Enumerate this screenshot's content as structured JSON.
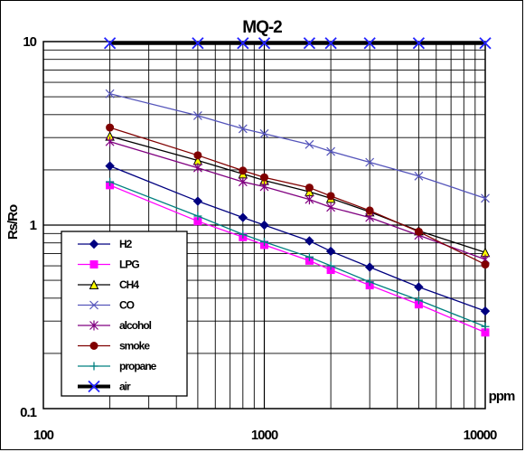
{
  "chart_data": {
    "type": "line",
    "title": "MQ-2",
    "xlabel": "ppm",
    "ylabel": "Rs/Ro",
    "x_scale": "log",
    "y_scale": "log",
    "xlim": [
      100,
      10000
    ],
    "ylim": [
      0.1,
      10
    ],
    "x_tick_labels": [
      "100",
      "1000",
      "10000"
    ],
    "y_tick_labels": [
      "0.1",
      "1",
      "10"
    ],
    "grid": true,
    "legend_position": "bottom-left",
    "series": [
      {
        "name": "H2",
        "color": "#000080",
        "marker": "diamond",
        "x": [
          200,
          500,
          800,
          1000,
          1600,
          2000,
          3000,
          5000,
          10000
        ],
        "y": [
          2.1,
          1.35,
          1.1,
          1.0,
          0.82,
          0.72,
          0.59,
          0.46,
          0.34
        ]
      },
      {
        "name": "LPG",
        "color": "#FF00FF",
        "marker": "square",
        "x": [
          200,
          500,
          800,
          1000,
          1600,
          2000,
          3000,
          5000,
          10000
        ],
        "y": [
          1.65,
          1.05,
          0.86,
          0.78,
          0.64,
          0.57,
          0.47,
          0.37,
          0.26
        ]
      },
      {
        "name": "CH4",
        "color": "#000000",
        "marker": "triangle",
        "x": [
          200,
          500,
          800,
          1000,
          1600,
          2000,
          3000,
          5000,
          10000
        ],
        "y": [
          3.05,
          2.25,
          1.9,
          1.75,
          1.52,
          1.4,
          1.18,
          0.93,
          0.71
        ]
      },
      {
        "name": "CO",
        "color": "#5555BB",
        "marker": "x",
        "x": [
          200,
          500,
          800,
          1000,
          1600,
          2000,
          3000,
          5000,
          10000
        ],
        "y": [
          5.2,
          3.95,
          3.35,
          3.15,
          2.75,
          2.52,
          2.2,
          1.85,
          1.4
        ]
      },
      {
        "name": "alcohol",
        "color": "#800080",
        "marker": "star",
        "x": [
          200,
          500,
          800,
          1000,
          1600,
          2000,
          3000,
          5000,
          10000
        ],
        "y": [
          2.85,
          2.05,
          1.72,
          1.62,
          1.38,
          1.25,
          1.1,
          0.88,
          0.65
        ]
      },
      {
        "name": "smoke",
        "color": "#800000",
        "marker": "circle",
        "x": [
          200,
          500,
          800,
          1000,
          1600,
          2000,
          3000,
          5000,
          10000
        ],
        "y": [
          3.4,
          2.4,
          1.98,
          1.82,
          1.6,
          1.44,
          1.2,
          0.92,
          0.61
        ]
      },
      {
        "name": "propane",
        "color": "#008080",
        "marker": "plus",
        "x": [
          200,
          500,
          800,
          1000,
          1600,
          2000,
          3000,
          5000,
          10000
        ],
        "y": [
          1.72,
          1.12,
          0.89,
          0.81,
          0.67,
          0.6,
          0.49,
          0.39,
          0.28
        ]
      },
      {
        "name": "air",
        "color": "#000000",
        "marker": "x-blue",
        "x": [
          200,
          500,
          800,
          1000,
          1600,
          2000,
          3000,
          5000,
          10000
        ],
        "y": [
          9.8,
          9.8,
          9.8,
          9.8,
          9.8,
          9.8,
          9.8,
          9.8,
          9.8
        ]
      }
    ]
  }
}
